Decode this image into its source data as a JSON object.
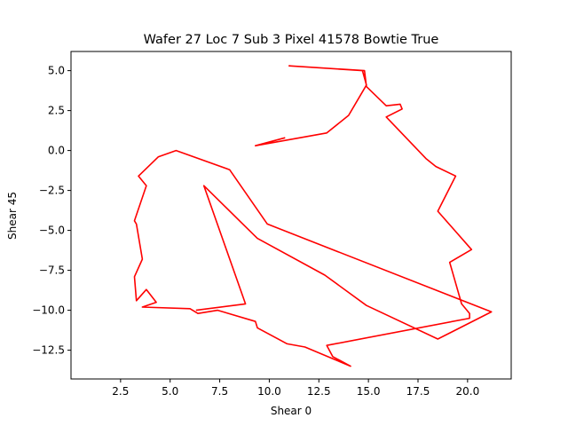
{
  "chart_data": {
    "type": "line",
    "title": "Wafer 27 Loc 7 Sub 3 Pixel 41578 Bowtie True",
    "xlabel": "Shear 0",
    "ylabel": "Shear 45",
    "xlim": [
      -0.0,
      22.2
    ],
    "ylim": [
      -14.3,
      6.2
    ],
    "xticks": [
      2.5,
      5.0,
      7.5,
      10.0,
      12.5,
      15.0,
      17.5,
      20.0
    ],
    "xtick_labels": [
      "2.5",
      "5.0",
      "7.5",
      "10.0",
      "12.5",
      "15.0",
      "17.5",
      "20.0"
    ],
    "yticks": [
      5.0,
      2.5,
      0.0,
      -2.5,
      -5.0,
      -7.5,
      -10.0,
      -12.5
    ],
    "ytick_labels": [
      "5.0",
      "2.5",
      "0.0",
      "−2.5",
      "−5.0",
      "−7.5",
      "−10.0",
      "−12.5"
    ],
    "grid": false,
    "series": [
      {
        "color": "#ff0000",
        "x": [
          10.8,
          9.3,
          12.9,
          14.0,
          14.9,
          14.7,
          11.0,
          14.8,
          14.9,
          15.9,
          16.6,
          16.7,
          15.9,
          17.9,
          18.4,
          19.4,
          18.5,
          20.2,
          19.1,
          19.7,
          19.9,
          20.1,
          20.1,
          12.9,
          13.2,
          14.1,
          11.8,
          10.9,
          9.4,
          9.3,
          7.4,
          6.4,
          6.0,
          3.6,
          4.3,
          3.8,
          3.3,
          3.2,
          3.6,
          3.3,
          3.2,
          3.8,
          3.4,
          4.4,
          5.3,
          8.0,
          9.9,
          21.2,
          18.5,
          14.9,
          12.8,
          9.4,
          6.7,
          8.8,
          6.3
        ],
        "y": [
          0.8,
          0.3,
          1.1,
          2.2,
          4.1,
          5.0,
          5.3,
          5.0,
          4.0,
          2.8,
          2.9,
          2.6,
          2.1,
          -0.5,
          -1.0,
          -1.6,
          -3.8,
          -6.2,
          -7.0,
          -9.6,
          -9.9,
          -10.2,
          -10.5,
          -12.2,
          -12.9,
          -13.5,
          -12.3,
          -12.1,
          -11.1,
          -10.7,
          -10.0,
          -10.2,
          -9.9,
          -9.8,
          -9.5,
          -8.7,
          -9.4,
          -7.9,
          -6.8,
          -4.6,
          -4.4,
          -2.2,
          -1.6,
          -0.4,
          0.0,
          -1.2,
          -4.6,
          -10.1,
          -11.8,
          -9.7,
          -7.8,
          -5.5,
          -2.2,
          -9.6,
          -10.0
        ]
      }
    ]
  }
}
